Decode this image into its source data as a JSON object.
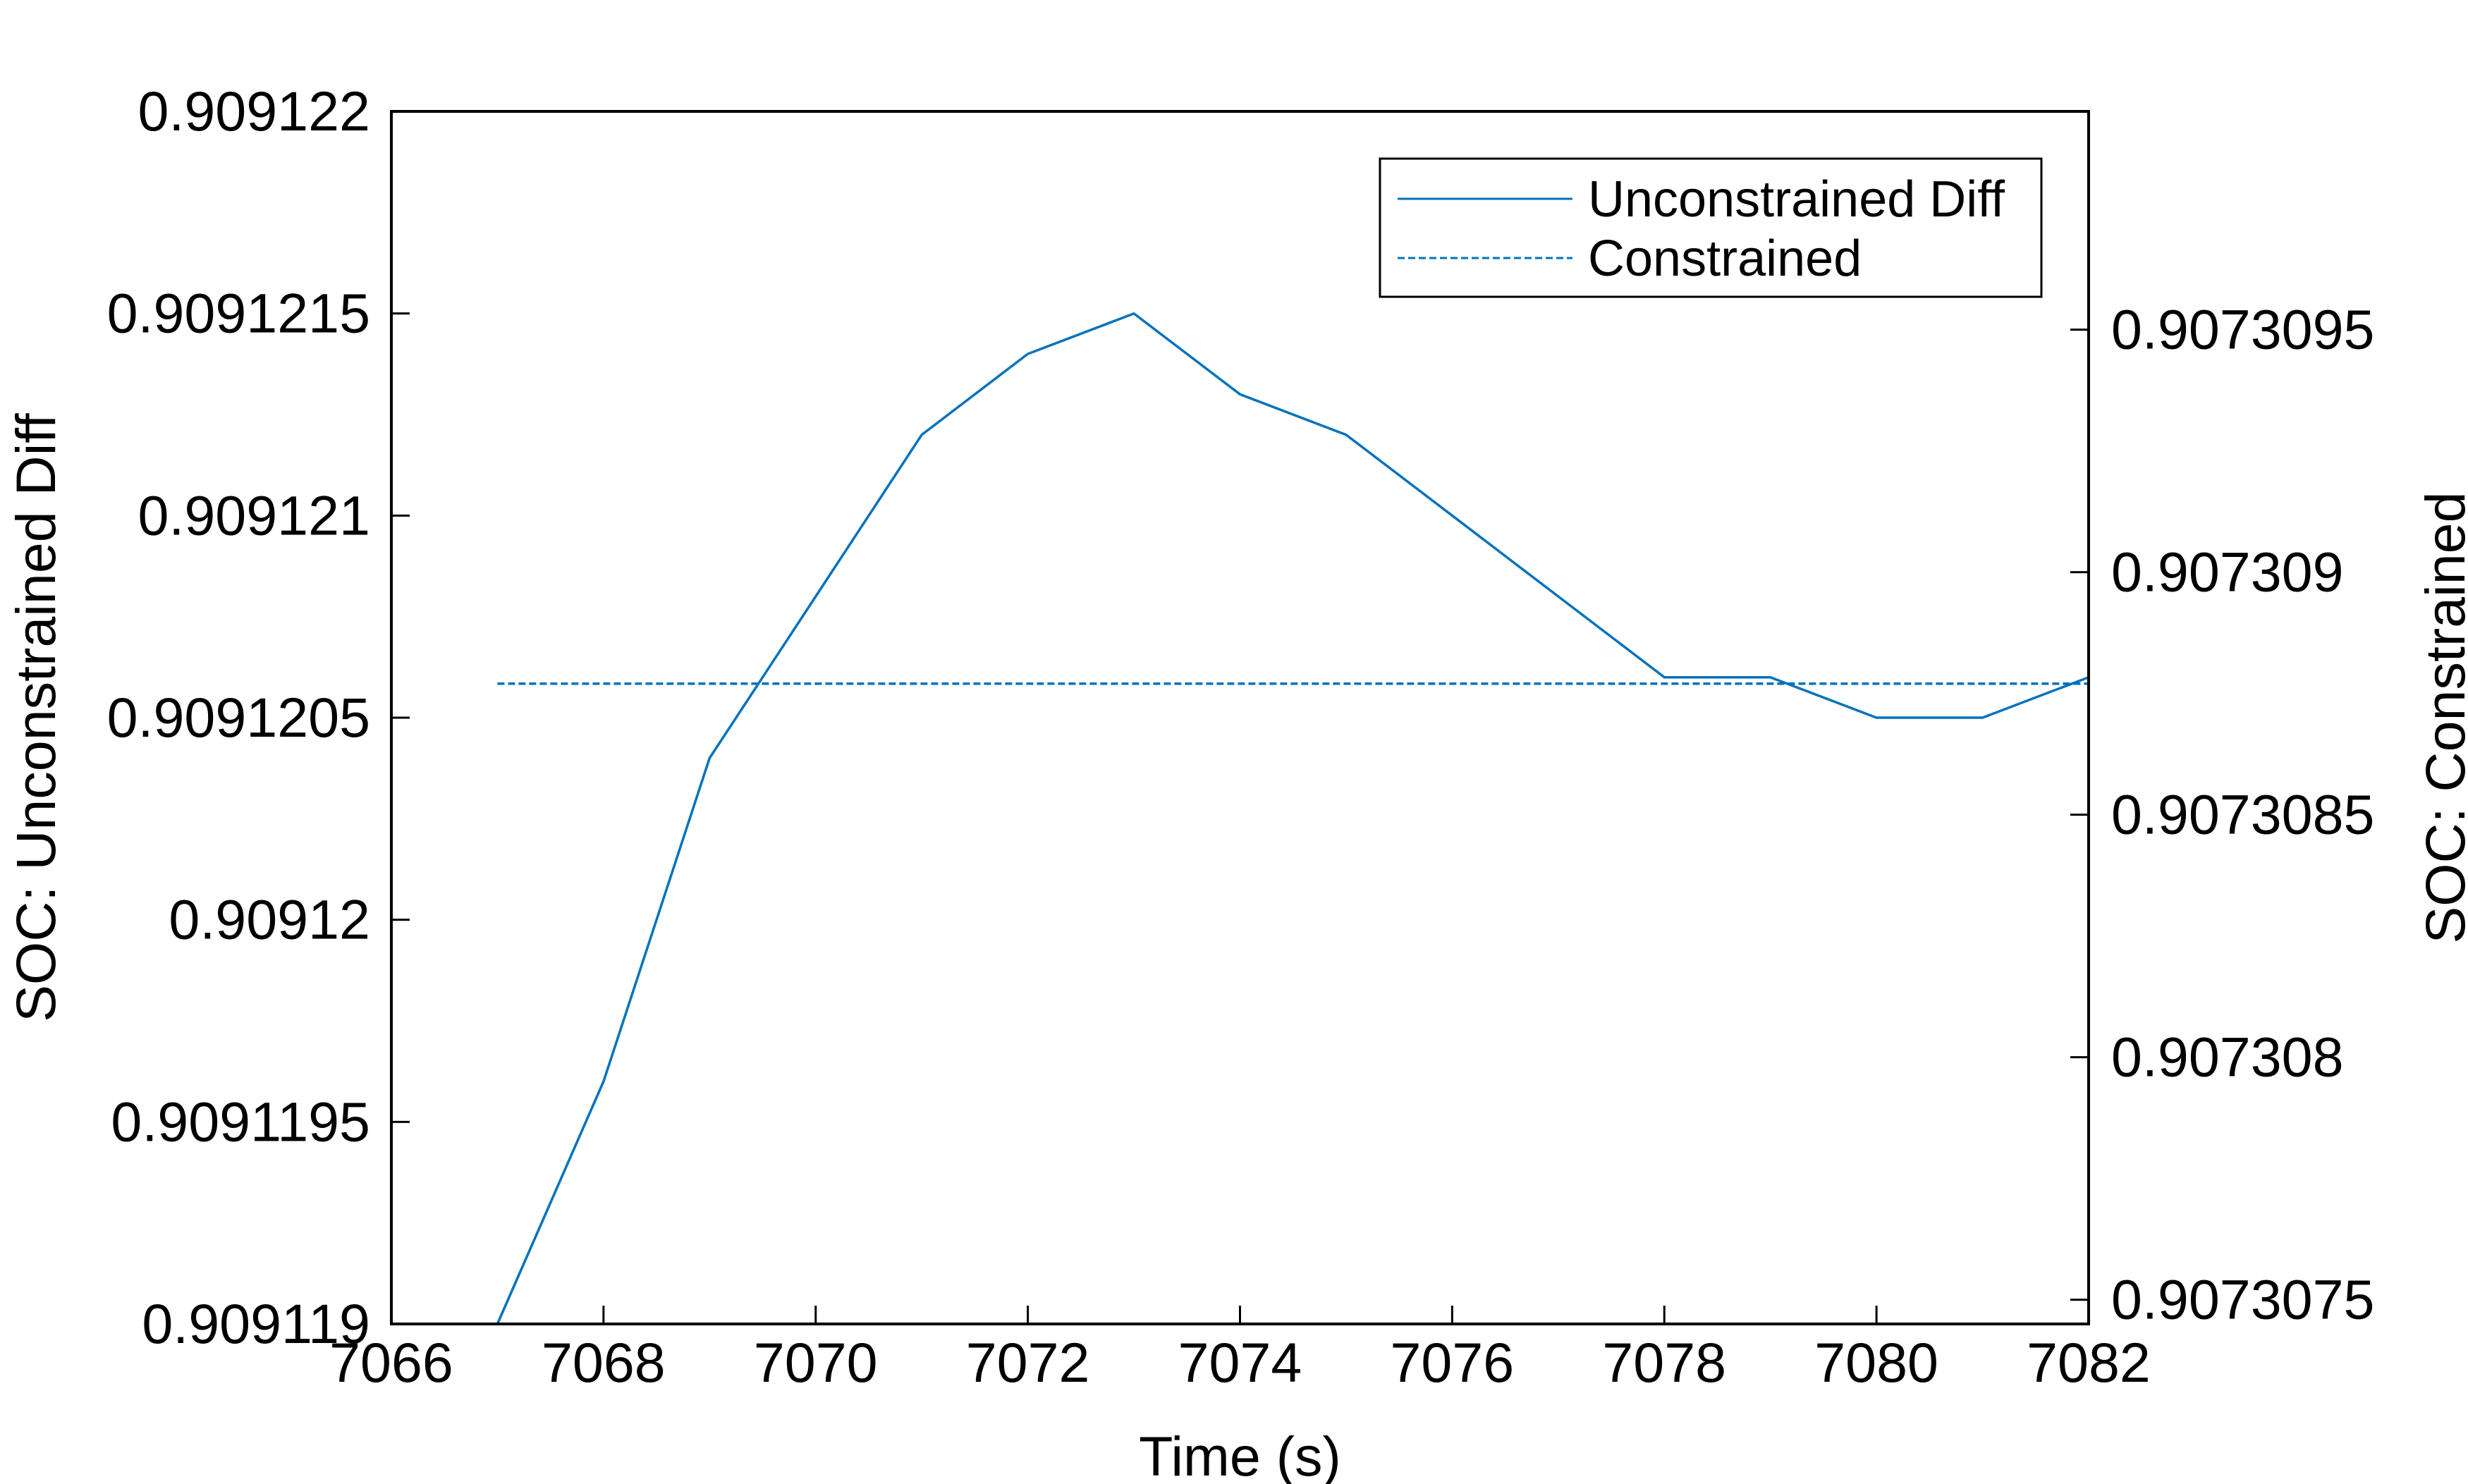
{
  "chart_data": {
    "type": "line",
    "xlabel": "Time (s)",
    "ylabel_left": "SOC: Unconstrained Diff",
    "ylabel_right": "SOC: Constrained",
    "xlim": [
      7066,
      7082
    ],
    "ylim_left": [
      0.909119,
      0.909122
    ],
    "ylim_right": [
      0.90730745,
      0.90730995
    ],
    "x_ticks": [
      {
        "value": 7066,
        "label": "7066"
      },
      {
        "value": 7068,
        "label": "7068"
      },
      {
        "value": 7070,
        "label": "7070"
      },
      {
        "value": 7072,
        "label": "7072"
      },
      {
        "value": 7074,
        "label": "7074"
      },
      {
        "value": 7076,
        "label": "7076"
      },
      {
        "value": 7078,
        "label": "7078"
      },
      {
        "value": 7080,
        "label": "7080"
      },
      {
        "value": 7082,
        "label": "7082"
      }
    ],
    "y_left_ticks": [
      {
        "value": 0.909119,
        "label": "0.909119"
      },
      {
        "value": 0.9091195,
        "label": "0.9091195"
      },
      {
        "value": 0.90912,
        "label": "0.90912"
      },
      {
        "value": 0.9091205,
        "label": "0.9091205"
      },
      {
        "value": 0.909121,
        "label": "0.909121"
      },
      {
        "value": 0.9091215,
        "label": "0.9091215"
      },
      {
        "value": 0.909122,
        "label": "0.909122"
      }
    ],
    "y_right_ticks": [
      {
        "value": 0.9073075,
        "label": "0.9073075"
      },
      {
        "value": 0.907308,
        "label": "0.907308"
      },
      {
        "value": 0.9073085,
        "label": "0.9073085"
      },
      {
        "value": 0.907309,
        "label": "0.907309"
      },
      {
        "value": 0.9073095,
        "label": "0.9073095"
      }
    ],
    "legend_position": "top-right",
    "grid": false,
    "series": [
      {
        "name": "Unconstrained Diff",
        "axis": "left",
        "style": "solid",
        "color": "#0072BD",
        "x": [
          7067,
          7068,
          7069,
          7070,
          7071,
          7072,
          7073,
          7074,
          7075,
          7076,
          7077,
          7078,
          7079,
          7080,
          7081,
          7082
        ],
        "y": [
          0.909119,
          0.9091196,
          0.9091204,
          0.9091208,
          0.9091212,
          0.9091214,
          0.9091215,
          0.9091213,
          0.9091212,
          0.909121,
          0.9091208,
          0.9091206,
          0.9091206,
          0.9091205,
          0.9091205,
          0.9091206
        ]
      },
      {
        "name": "Constrained",
        "axis": "right",
        "style": "dashed",
        "color": "#0072BD",
        "x": [
          7067,
          7082
        ],
        "y": [
          0.90730877,
          0.90730877
        ]
      }
    ]
  }
}
